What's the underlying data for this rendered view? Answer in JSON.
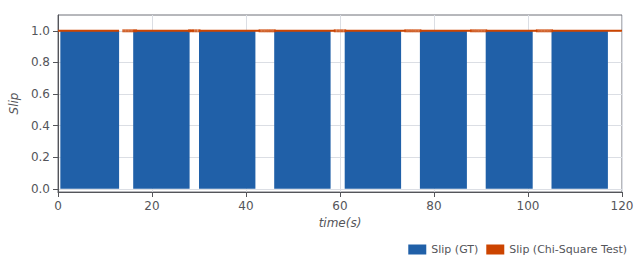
{
  "chart_data": {
    "type": "bar",
    "xlabel": "time(s)",
    "ylabel": "Slip",
    "xlim": [
      0,
      120
    ],
    "ylim": [
      -0.02,
      1.1
    ],
    "xticks": [
      0,
      20,
      40,
      60,
      80,
      100,
      120
    ],
    "yticks": [
      {
        "value": 0,
        "label": "0.0"
      },
      0.2,
      0.4,
      0.6,
      0.8,
      {
        "value": 1.0,
        "label": "1.0"
      }
    ],
    "grid": true,
    "legend": "lower right",
    "series": [
      {
        "name": "Slip (GT)",
        "type": "bar",
        "color": "#2060a8",
        "x": [
          0.5,
          16,
          30,
          46,
          61,
          77,
          91,
          105
        ],
        "widths": [
          12.5,
          12,
          12,
          12,
          12,
          10,
          10,
          12
        ],
        "values": [
          1.0,
          1.0,
          1.0,
          1.0,
          1.0,
          1.0,
          1.0,
          1.0
        ]
      },
      {
        "name": "Slip (Chi-Square Test)",
        "type": "scatter",
        "marker": "square",
        "color": "#cc4400",
        "x": [
          0,
          16,
          30,
          46,
          61,
          77,
          91,
          105
        ],
        "widths": [
          13,
          13,
          13,
          13,
          13,
          11,
          11,
          15
        ],
        "values": [
          1.0,
          1.0,
          1.0,
          1.0,
          1.0,
          1.0,
          1.0,
          1.0
        ],
        "gap_x": [
          14,
          14.625,
          15.25,
          15.875,
          16.5,
          28,
          28.666666666666668,
          29.333333333333332,
          30,
          43,
          43.6,
          44.2,
          44.8,
          45.4,
          46,
          59,
          59.666666666666664,
          60.333333333333336,
          61,
          74,
          74.6,
          75.2,
          75.8,
          76.4,
          77,
          88,
          88.6,
          89.2,
          89.8,
          90.4,
          91,
          102,
          102.6,
          103.2,
          103.8,
          104.4,
          105
        ],
        "gap_values": [
          1.0,
          1.0,
          1.0,
          1.0,
          1.0,
          1.0,
          1.0,
          1.0,
          1.0,
          1.0,
          1.0,
          1.0,
          1.0,
          1.0,
          1.0,
          1.0,
          1.0,
          1.0,
          1.0,
          1.0,
          1.0,
          1.0,
          1.0,
          1.0,
          1.0,
          1.0,
          1.0,
          1.0,
          1.0,
          1.0,
          1.0,
          1.0,
          1.0,
          1.0,
          1.0,
          1.0,
          1.0
        ]
      }
    ]
  }
}
